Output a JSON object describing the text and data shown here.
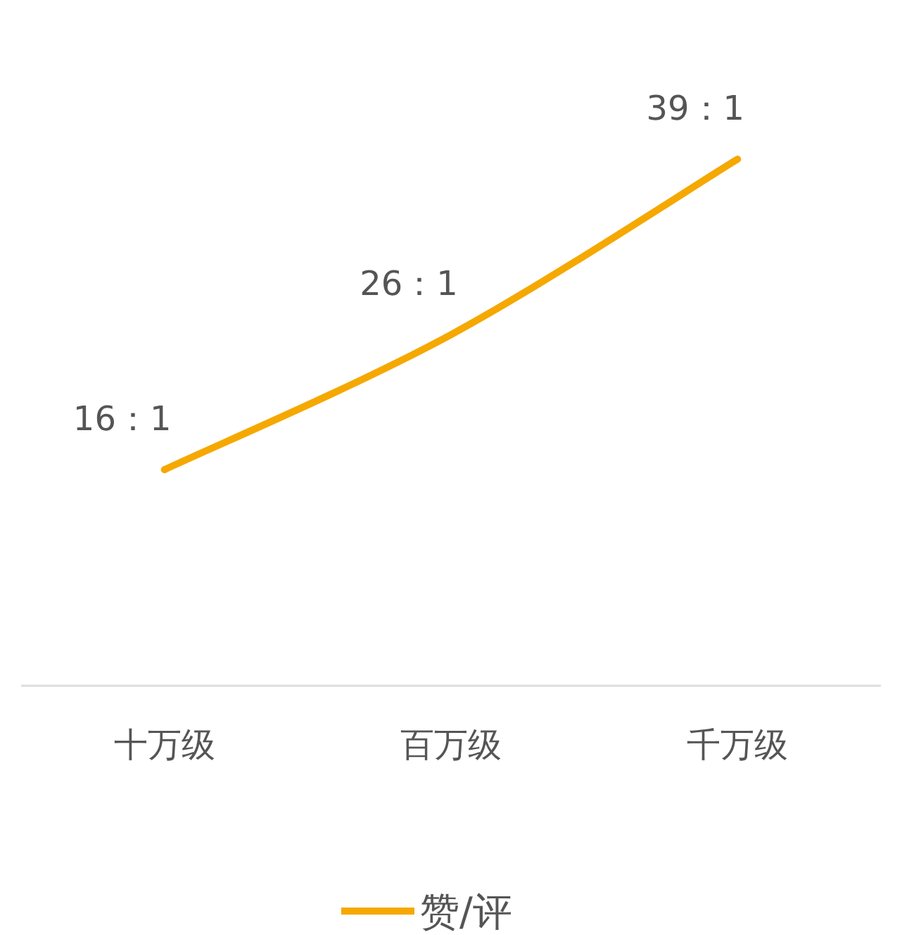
{
  "chart_data": {
    "type": "line",
    "categories": [
      "十万级",
      "百万级",
      "千万级"
    ],
    "series": [
      {
        "name": "赞/评",
        "color": "#f5a800",
        "values": [
          16,
          26,
          39
        ],
        "value_labels": [
          "16：1",
          "26：1",
          "39：1"
        ]
      }
    ],
    "legend": "bottom",
    "marker": "none"
  }
}
